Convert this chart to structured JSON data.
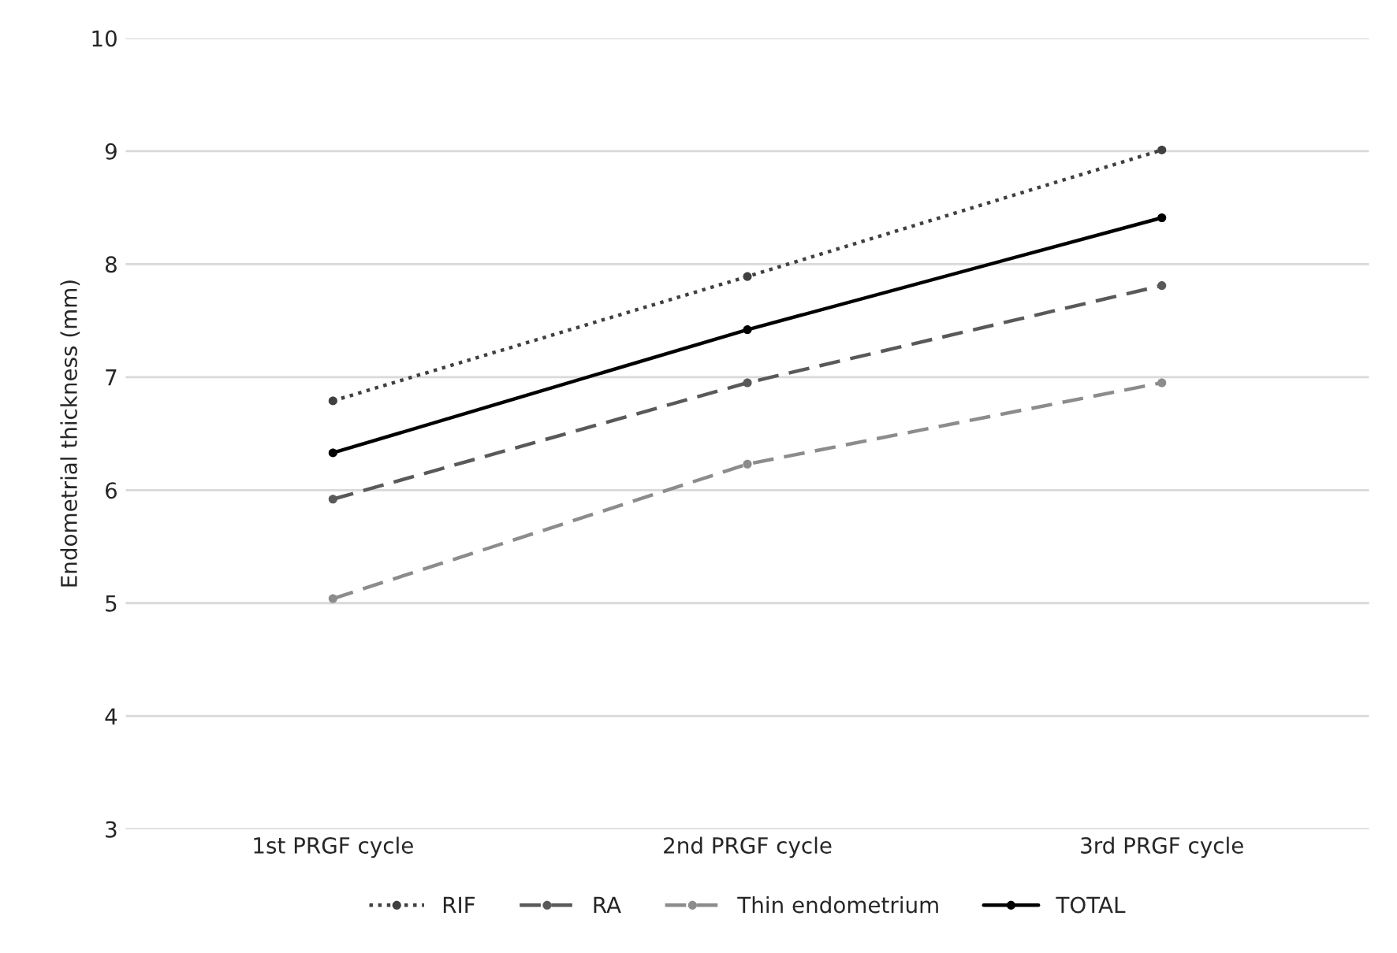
{
  "chart_data": {
    "type": "line",
    "ylabel": "Endometrial thickness (mm)",
    "categories": [
      "1st PRGF cycle",
      "2nd PRGF cycle",
      "3rd PRGF cycle"
    ],
    "series": [
      {
        "name": "RIF",
        "color": "#404040",
        "line_style": "dotted",
        "values": [
          6.79,
          7.89,
          9.01
        ]
      },
      {
        "name": "RA",
        "color": "#595959",
        "line_style": "dashed",
        "values": [
          5.92,
          6.95,
          7.81
        ]
      },
      {
        "name": "Thin endometrium",
        "color": "#8c8c8c",
        "line_style": "dashed",
        "values": [
          5.04,
          6.23,
          6.95
        ]
      },
      {
        "name": "TOTAL",
        "color": "#000000",
        "line_style": "solid",
        "values": [
          6.33,
          7.42,
          8.41
        ]
      }
    ],
    "ylim": [
      3,
      10
    ],
    "yticks": [
      3,
      4,
      5,
      6,
      7,
      8,
      9,
      10
    ],
    "grid": "y",
    "legend": "bottom",
    "marker": "circle"
  }
}
